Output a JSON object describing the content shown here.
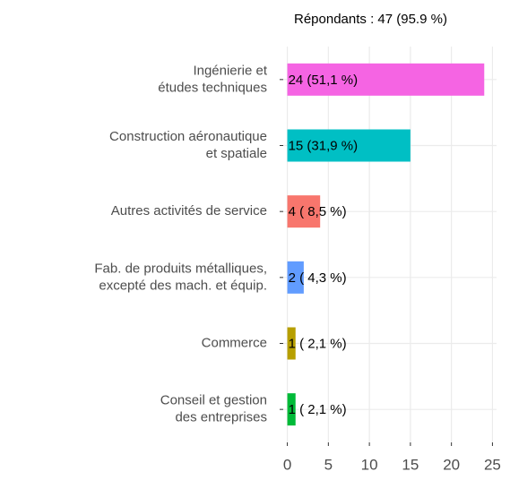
{
  "chart_data": {
    "type": "barh",
    "subtitle": "Répondants : 47 (95.9 %)",
    "categories": [
      [
        "Ingénierie et",
        "études techniques"
      ],
      [
        "Construction aéronautique",
        "et spatiale"
      ],
      [
        "Autres activités de service"
      ],
      [
        "Fab. de produits métalliques,",
        "excepté des mach. et équip."
      ],
      [
        "Commerce"
      ],
      [
        "Conseil et gestion",
        "des entreprises"
      ]
    ],
    "values": [
      24,
      15,
      4,
      2,
      1,
      1
    ],
    "value_labels": [
      "24 (51,1 %)",
      "15 (31,9 %)",
      "4 ( 8,5 %)",
      "2 ( 4,3 %)",
      "1 ( 2,1 %)",
      "1 ( 2,1 %)"
    ],
    "colors": [
      "#f564e3",
      "#00bfc4",
      "#f8766d",
      "#619cff",
      "#b79f00",
      "#00ba38"
    ],
    "xlim": [
      -0.5,
      25.5
    ],
    "xticks": [
      0,
      5,
      10,
      15,
      20,
      25
    ],
    "grid": true
  }
}
